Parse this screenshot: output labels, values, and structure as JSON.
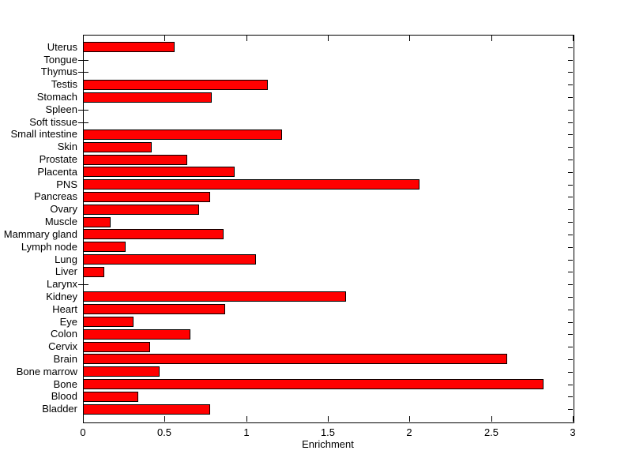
{
  "figure": {
    "background_color": "#ffffff",
    "axis_color": "#000000",
    "bar_fill_color": "#ff0000",
    "bar_edge_color": "#000000"
  },
  "chart_data": {
    "type": "bar",
    "orientation": "horizontal",
    "title": "",
    "xlabel": "Enrichment",
    "ylabel": "",
    "xlim": [
      0,
      3
    ],
    "grid": false,
    "legend": null,
    "x_tick_values": [
      0,
      0.5,
      1,
      1.5,
      2,
      2.5,
      3
    ],
    "x_tick_labels": [
      "0",
      "0.5",
      "1",
      "1.5",
      "2",
      "2.5",
      "3"
    ],
    "categories": [
      "Uterus",
      "Tongue",
      "Thymus",
      "Testis",
      "Stomach",
      "Spleen",
      "Soft tissue",
      "Small intestine",
      "Skin",
      "Prostate",
      "Placenta",
      "PNS",
      "Pancreas",
      "Ovary",
      "Muscle",
      "Mammary gland",
      "Lymph node",
      "Lung",
      "Liver",
      "Larynx",
      "Kidney",
      "Heart",
      "Eye",
      "Colon",
      "Cervix",
      "Brain",
      "Bone marrow",
      "Bone",
      "Blood",
      "Bladder"
    ],
    "values": [
      0.56,
      0,
      0,
      1.13,
      0.79,
      0,
      0,
      1.22,
      0.42,
      0.64,
      0.93,
      2.06,
      0.78,
      0.71,
      0.17,
      0.86,
      0.26,
      1.06,
      0.13,
      0,
      1.61,
      0.87,
      0.31,
      0.66,
      0.41,
      2.6,
      0.47,
      2.82,
      0.34,
      0.78
    ]
  }
}
